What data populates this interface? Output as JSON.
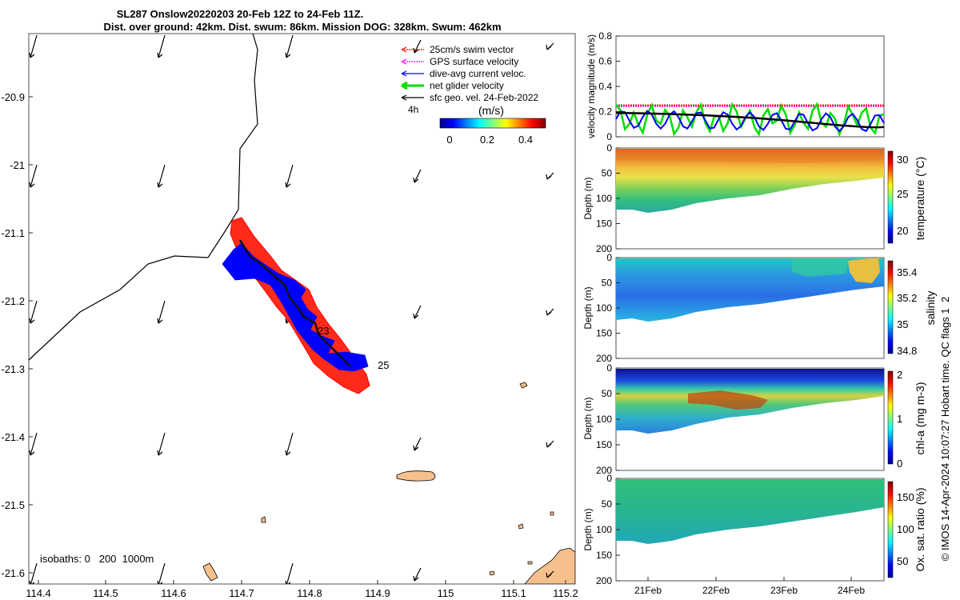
{
  "header": {
    "title_line1": "SL287 Onslow20220203 20-Feb 12Z to 24-Feb 11Z.",
    "title_line2": "Dist. over ground: 42km. Dist. swum: 86km. Mission DOG: 328km. Swum: 462km"
  },
  "map": {
    "x_ticks": [
      "114.4",
      "114.5",
      "114.6",
      "114.7",
      "114.8",
      "114.9",
      "115",
      "115.1",
      "115.2"
    ],
    "y_ticks": [
      "-20.9",
      "-21",
      "-21.1",
      "-21.2",
      "-21.3",
      "-21.4",
      "-21.5",
      "-21.6"
    ],
    "legend": [
      {
        "label": "25cm/s swim vector",
        "color": "#ff0000",
        "style": "dotted"
      },
      {
        "label": "GPS surface velocity",
        "color": "#ff00ff",
        "style": "dotted"
      },
      {
        "label": "dive-avg current veloc.",
        "color": "#0000ff",
        "style": "solid"
      },
      {
        "label": "net glider velocity",
        "color": "#00dd00",
        "style": "thick"
      },
      {
        "label": "sfc geo. vel. 24-Feb-2022",
        "color": "#000000",
        "style": "solid"
      }
    ],
    "scale_arrow_label": "4h",
    "colorbar": {
      "label": "(m/s)",
      "ticks": [
        "0",
        "0.2",
        "0.4"
      ]
    },
    "track_labels": [
      "23",
      "25"
    ],
    "isobaths_label": "isobaths: 0   200  1000m"
  },
  "panels": {
    "velocity": {
      "ylabel": "velocity magnitude (m/s)",
      "y_ticks": [
        "0",
        "0.2",
        "0.4",
        "0.6",
        "0.8"
      ],
      "ylim": [
        0,
        0.8
      ]
    },
    "temperature": {
      "ylabel": "Depth (m)",
      "cbar_label": "temperature (°C)",
      "cbar_ticks": [
        "30",
        "25",
        "20"
      ],
      "y_ticks": [
        "0",
        "50",
        "100",
        "150",
        "200"
      ]
    },
    "salinity": {
      "ylabel": "Depth (m)",
      "cbar_label": "salinity",
      "cbar_ticks": [
        "35.4",
        "35.2",
        "35",
        "34.8"
      ],
      "y_ticks": [
        "0",
        "50",
        "100",
        "150",
        "200"
      ]
    },
    "chla": {
      "ylabel": "Depth (m)",
      "cbar_label": "chl-a (mg m-3)",
      "cbar_ticks": [
        "2",
        "1",
        "0"
      ],
      "y_ticks": [
        "0",
        "50",
        "100",
        "150",
        "200"
      ]
    },
    "oxygen": {
      "ylabel": "Depth (m)",
      "cbar_label": "Ox. sat. ratio (%)",
      "cbar_ticks": [
        "150",
        "100",
        "50"
      ],
      "y_ticks": [
        "0",
        "50",
        "100",
        "150",
        "200"
      ]
    },
    "x_ticks": [
      "21Feb",
      "22Feb",
      "23Feb",
      "24Feb"
    ]
  },
  "footer": {
    "credit": "© IMOS 14-Apr-2024 10:07:27 Hobart time. QC flags 1  2"
  },
  "chart_data": [
    {
      "type": "line",
      "title": "",
      "ylabel": "velocity magnitude (m/s)",
      "ylim": [
        0,
        0.8
      ],
      "x": [
        "21Feb",
        "22Feb",
        "23Feb",
        "24Feb"
      ],
      "series": [
        {
          "name": "25cm/s swim vector",
          "color": "#ff0000",
          "values": [
            0.25,
            0.25,
            0.25,
            0.25
          ]
        },
        {
          "name": "GPS surface velocity",
          "color": "#ff00ff",
          "values": [
            0.24,
            0.24,
            0.24,
            0.24
          ]
        },
        {
          "name": "dive-avg current veloc.",
          "color": "#0000ff",
          "values": [
            0.2,
            0.12,
            0.15,
            0.1
          ]
        },
        {
          "name": "net glider velocity",
          "color": "#00dd00",
          "values": [
            0.15,
            0.2,
            0.12,
            0.15
          ]
        },
        {
          "name": "sfc geo. vel. 24-Feb-2022",
          "color": "#000000",
          "values": [
            0.19,
            0.16,
            0.11,
            0.08
          ]
        }
      ]
    }
  ]
}
